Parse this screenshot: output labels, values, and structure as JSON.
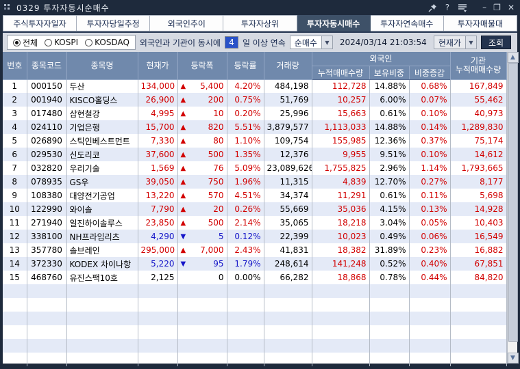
{
  "window": {
    "title": "0329 투자자동시순매수",
    "titlebar_icons": [
      "pin-icon",
      "help-icon",
      "menu-icon",
      "minimize-icon",
      "maximize-icon",
      "close-icon"
    ],
    "help_glyph": "?",
    "minimize_glyph": "–",
    "maximize_glyph": "❐",
    "close_glyph": "✕"
  },
  "tabs": [
    {
      "label": "주식투자자일자",
      "active": false
    },
    {
      "label": "투자자당일추정",
      "active": false
    },
    {
      "label": "외국인추이",
      "active": false
    },
    {
      "label": "투자자상위",
      "active": false
    },
    {
      "label": "투자자동시매수",
      "active": true
    },
    {
      "label": "투자자연속매수",
      "active": false
    },
    {
      "label": "투자자매물대",
      "active": false
    }
  ],
  "controls": {
    "radios": [
      {
        "label": "전체",
        "selected": true
      },
      {
        "label": "KOSPI",
        "selected": false
      },
      {
        "label": "KOSDAQ",
        "selected": false
      }
    ],
    "condition_prefix": "외국인과 기관이 동시에",
    "days_value": "4",
    "condition_suffix": "일 이상 연속",
    "mode_select_value": "순매수",
    "date": "2024/03/14",
    "time": "21:03:54",
    "price_select_value": "현재가",
    "query_button": "조회"
  },
  "table": {
    "headers": {
      "no": "번호",
      "code": "종목코드",
      "name": "종목명",
      "price": "현재가",
      "change": "등락폭",
      "change_rate": "등락률",
      "volume": "거래량",
      "foreign_group": "외국인",
      "f_accum": "누적매매수량",
      "f_hold": "보유비중",
      "f_delta": "비중증감",
      "inst_line1": "기관",
      "inst_line2": "누적매매수량"
    },
    "arrow_up": "▲",
    "arrow_down": "▼",
    "rows": [
      {
        "no": "1",
        "code": "000150",
        "name": "두산",
        "price": "134,000",
        "dir": "up",
        "change": "5,400",
        "rate": "4.20%",
        "volume": "484,198",
        "f_accum": "112,728",
        "f_hold": "14.88%",
        "f_delta": "0.68%",
        "inst": "167,849"
      },
      {
        "no": "2",
        "code": "001940",
        "name": "KISCO홀딩스",
        "price": "26,900",
        "dir": "up",
        "change": "200",
        "rate": "0.75%",
        "volume": "51,769",
        "f_accum": "10,257",
        "f_hold": "6.00%",
        "f_delta": "0.07%",
        "inst": "55,462"
      },
      {
        "no": "3",
        "code": "017480",
        "name": "삼현철강",
        "price": "4,995",
        "dir": "up",
        "change": "10",
        "rate": "0.20%",
        "volume": "25,996",
        "f_accum": "15,663",
        "f_hold": "0.61%",
        "f_delta": "0.10%",
        "inst": "40,973"
      },
      {
        "no": "4",
        "code": "024110",
        "name": "기업은행",
        "price": "15,700",
        "dir": "up",
        "change": "820",
        "rate": "5.51%",
        "volume": "3,879,577",
        "f_accum": "1,113,033",
        "f_hold": "14.88%",
        "f_delta": "0.14%",
        "inst": "1,289,830"
      },
      {
        "no": "5",
        "code": "026890",
        "name": "스틱인베스트먼트",
        "price": "7,330",
        "dir": "up",
        "change": "80",
        "rate": "1.10%",
        "volume": "109,754",
        "f_accum": "155,985",
        "f_hold": "12.36%",
        "f_delta": "0.37%",
        "inst": "75,174"
      },
      {
        "no": "6",
        "code": "029530",
        "name": "신도리코",
        "price": "37,600",
        "dir": "up",
        "change": "500",
        "rate": "1.35%",
        "volume": "12,376",
        "f_accum": "9,955",
        "f_hold": "9.51%",
        "f_delta": "0.10%",
        "inst": "14,612"
      },
      {
        "no": "7",
        "code": "032820",
        "name": "우리기술",
        "price": "1,569",
        "dir": "up",
        "change": "76",
        "rate": "5.09%",
        "volume": "23,089,626",
        "f_accum": "1,755,825",
        "f_hold": "2.96%",
        "f_delta": "1.14%",
        "inst": "1,793,665"
      },
      {
        "no": "8",
        "code": "078935",
        "name": "GS우",
        "price": "39,050",
        "dir": "up",
        "change": "750",
        "rate": "1.96%",
        "volume": "11,315",
        "f_accum": "4,839",
        "f_hold": "12.70%",
        "f_delta": "0.27%",
        "inst": "8,177"
      },
      {
        "no": "9",
        "code": "108380",
        "name": "대양전기공업",
        "price": "13,220",
        "dir": "up",
        "change": "570",
        "rate": "4.51%",
        "volume": "34,374",
        "f_accum": "11,291",
        "f_hold": "0.61%",
        "f_delta": "0.11%",
        "inst": "5,698"
      },
      {
        "no": "10",
        "code": "122990",
        "name": "와이솔",
        "price": "7,790",
        "dir": "up",
        "change": "20",
        "rate": "0.26%",
        "volume": "55,669",
        "f_accum": "35,036",
        "f_hold": "4.15%",
        "f_delta": "0.13%",
        "inst": "14,928"
      },
      {
        "no": "11",
        "code": "271940",
        "name": "일진하이솔루스",
        "price": "23,850",
        "dir": "up",
        "change": "500",
        "rate": "2.14%",
        "volume": "35,065",
        "f_accum": "18,218",
        "f_hold": "3.04%",
        "f_delta": "0.05%",
        "inst": "10,403"
      },
      {
        "no": "12",
        "code": "338100",
        "name": "NH프라임리츠",
        "price": "4,290",
        "dir": "down",
        "change": "5",
        "rate": "0.12%",
        "volume": "22,399",
        "f_accum": "10,023",
        "f_hold": "0.49%",
        "f_delta": "0.06%",
        "inst": "16,549"
      },
      {
        "no": "13",
        "code": "357780",
        "name": "솔브레인",
        "price": "295,000",
        "dir": "up",
        "change": "7,000",
        "rate": "2.43%",
        "volume": "41,831",
        "f_accum": "18,382",
        "f_hold": "31.89%",
        "f_delta": "0.23%",
        "inst": "16,882"
      },
      {
        "no": "14",
        "code": "372330",
        "name": "KODEX 차이나항",
        "price": "5,220",
        "dir": "down",
        "change": "95",
        "rate": "1.79%",
        "volume": "248,614",
        "f_accum": "141,248",
        "f_hold": "0.52%",
        "f_delta": "0.40%",
        "inst": "67,851"
      },
      {
        "no": "15",
        "code": "468760",
        "name": "유진스팩10호",
        "price": "2,125",
        "dir": "flat",
        "change": "0",
        "rate": "0.00%",
        "volume": "66,282",
        "f_accum": "18,868",
        "f_hold": "0.78%",
        "f_delta": "0.44%",
        "inst": "84,820"
      }
    ]
  },
  "colors": {
    "up_red": "#d20000",
    "down_blue": "#1414c8",
    "header_bg": "#7089ac",
    "titlebar_bg": "#1e2a3c",
    "active_tab_bg": "#3e5168",
    "zebra_row": "#e4eaf7",
    "query_button_bg": "#23334e"
  }
}
